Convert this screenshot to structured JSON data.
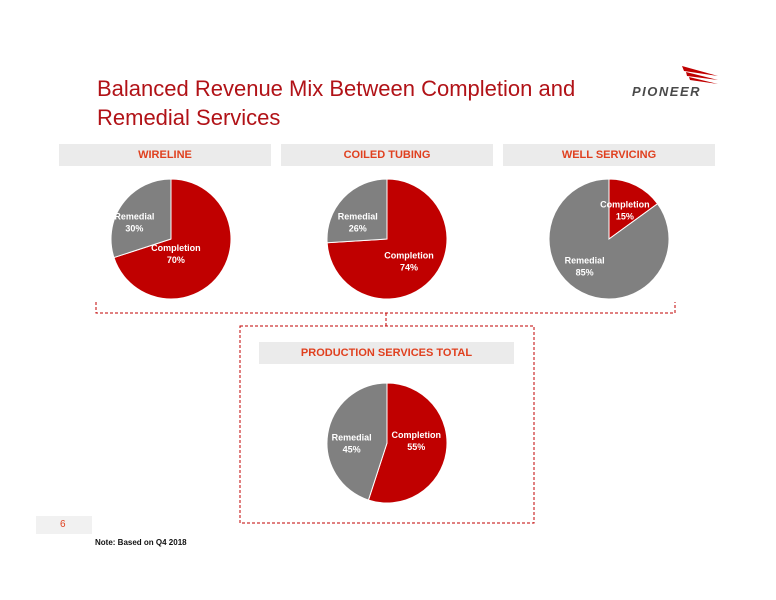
{
  "slide": {
    "title_line1": "Balanced Revenue Mix Between Completion and",
    "title_line2": "Remedial Services",
    "logo_text": "PIONEER",
    "page_number": "6",
    "note": "Note: Based on Q4 2018"
  },
  "colors": {
    "completion": "#c00000",
    "remedial": "#808080",
    "title": "#b11217",
    "header_text": "#e0401f",
    "bracket": "#c00000"
  },
  "chart_data": [
    {
      "type": "pie",
      "title": "WIRELINE",
      "slices": [
        {
          "label": "Completion",
          "value": 70,
          "display": "70%"
        },
        {
          "label": "Remedial",
          "value": 30,
          "display": "30%"
        }
      ]
    },
    {
      "type": "pie",
      "title": "COILED TUBING",
      "slices": [
        {
          "label": "Completion",
          "value": 74,
          "display": "74%"
        },
        {
          "label": "Remedial",
          "value": 26,
          "display": "26%"
        }
      ]
    },
    {
      "type": "pie",
      "title": "WELL SERVICING",
      "slices": [
        {
          "label": "Completion",
          "value": 15,
          "display": "15%"
        },
        {
          "label": "Remedial",
          "value": 85,
          "display": "85%"
        }
      ]
    },
    {
      "type": "pie",
      "title": "PRODUCTION SERVICES TOTAL",
      "slices": [
        {
          "label": "Completion",
          "value": 55,
          "display": "55%"
        },
        {
          "label": "Remedial",
          "value": 45,
          "display": "45%"
        }
      ]
    }
  ]
}
